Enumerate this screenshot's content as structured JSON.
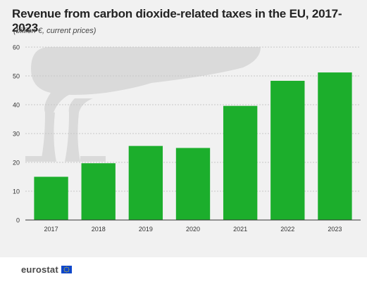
{
  "header": {
    "title": "Revenue from carbon dioxide-related taxes in the EU, 2017-2023",
    "subtitle": "(billion €, current prices)"
  },
  "footer": {
    "brand": "eurostat",
    "flag_icon": "eu-flag-icon"
  },
  "colors": {
    "bar": "#1cae2c",
    "background": "#f1f1f1",
    "decoration": "#dadada",
    "gridline": "#c8c8c8",
    "flag_blue": "#0e47cb",
    "flag_star": "#ffde00"
  },
  "chart_data": {
    "type": "bar",
    "categories": [
      "2017",
      "2018",
      "2019",
      "2020",
      "2021",
      "2022",
      "2023"
    ],
    "values": [
      15,
      19.7,
      25.7,
      25,
      39.6,
      48.3,
      51.2
    ],
    "title": "Revenue from carbon dioxide-related taxes in the EU, 2017-2023",
    "subtitle": "(billion €, current prices)",
    "ylim": [
      0,
      60
    ],
    "yticks": [
      0,
      10,
      20,
      30,
      40,
      50,
      60
    ],
    "grid": true
  }
}
